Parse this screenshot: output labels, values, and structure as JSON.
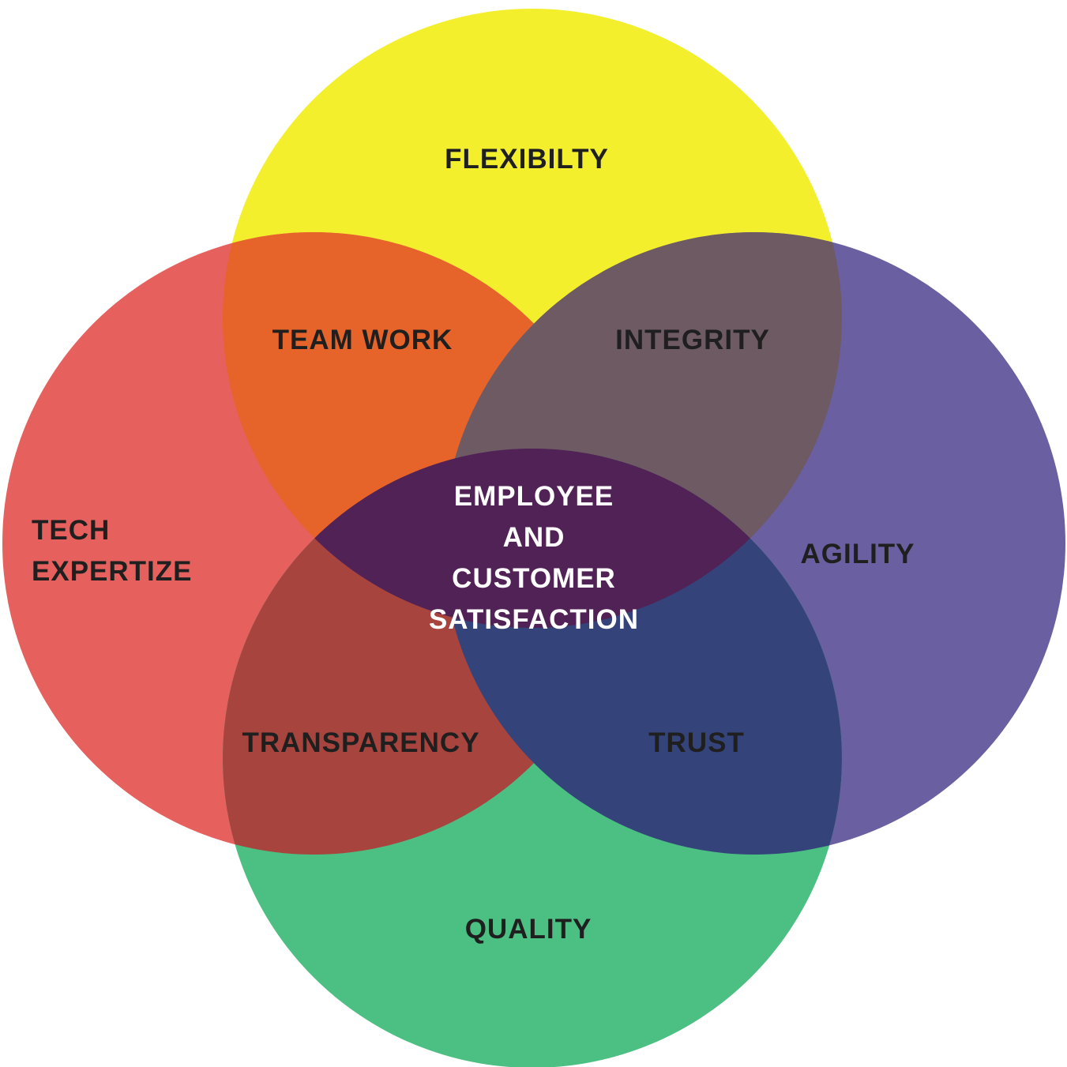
{
  "diagram": {
    "type": "venn-four-circles",
    "circles": [
      {
        "id": "top",
        "label": "FLEXIBILTY",
        "color": "#f3ef2c"
      },
      {
        "id": "left",
        "label_lines": [
          "TECH",
          "EXPERTIZE"
        ],
        "color": "#e6605e"
      },
      {
        "id": "right",
        "label": "AGILITY",
        "color": "#6a5fa0"
      },
      {
        "id": "bottom",
        "label": "QUALITY",
        "color": "#4cbf82"
      }
    ],
    "overlaps": {
      "top_left": "TEAM WORK",
      "top_right": "INTEGRITY",
      "bottom_left": "TRANSPARENCY",
      "bottom_right": "TRUST"
    },
    "overlap_colors": {
      "top_left": "#e6642a",
      "top_right": "#6e5a63",
      "bottom_left": "#a8443e",
      "bottom_right": "#34447a",
      "center": "#512255"
    },
    "center_lines": [
      "EMPLOYEE",
      "AND",
      "CUSTOMER",
      "SATISFACTION"
    ]
  }
}
